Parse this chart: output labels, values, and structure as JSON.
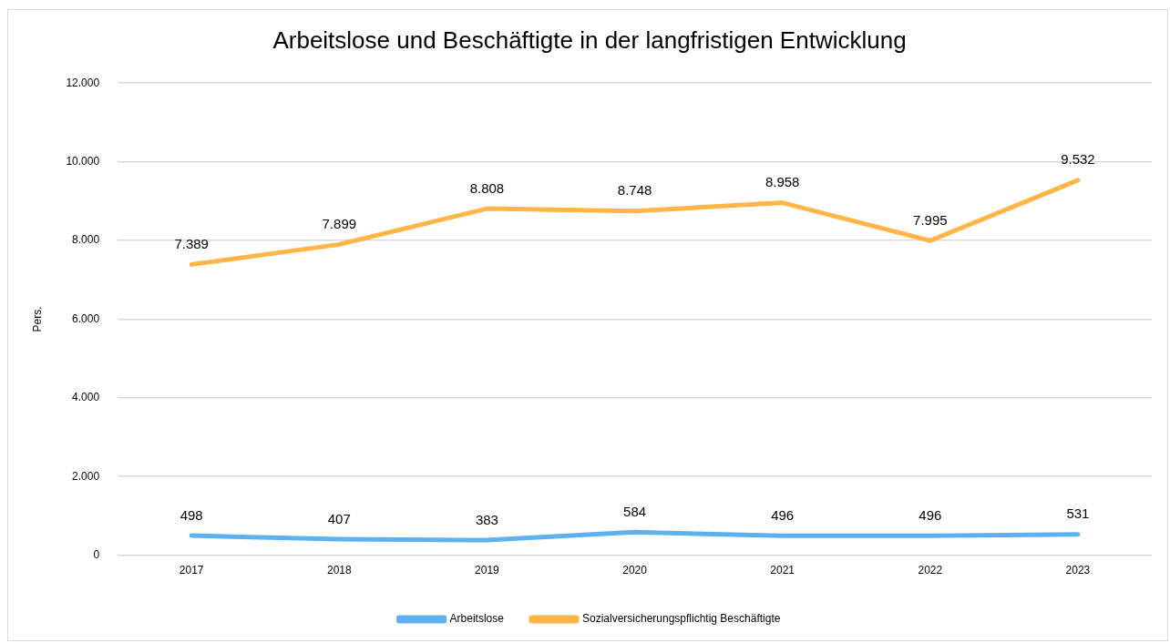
{
  "chart_data": {
    "type": "line",
    "title": "Arbeitslose und Beschäftigte in der langfristigen Entwicklung",
    "ylabel": "Pers.",
    "categories": [
      "2017",
      "2018",
      "2019",
      "2020",
      "2021",
      "2022",
      "2023"
    ],
    "series": [
      {
        "name": "Arbeitslose",
        "color": "#5eb1ef",
        "values": [
          498,
          407,
          383,
          584,
          496,
          496,
          531
        ],
        "value_labels": [
          "498",
          "407",
          "383",
          "584",
          "496",
          "496",
          "531"
        ]
      },
      {
        "name": "Sozialversicherungspflichtig Beschäftigte",
        "color": "#ffb547",
        "values": [
          7389,
          7899,
          8808,
          8748,
          8958,
          7995,
          9532
        ],
        "value_labels": [
          "7.389",
          "7.899",
          "8.808",
          "8.748",
          "8.958",
          "7.995",
          "9.532"
        ]
      }
    ],
    "ylim": [
      0,
      12000
    ],
    "yticks": [
      {
        "value": 0,
        "label": "0"
      },
      {
        "value": 2000,
        "label": "2.000"
      },
      {
        "value": 4000,
        "label": "4.000"
      },
      {
        "value": 6000,
        "label": "6.000"
      },
      {
        "value": 8000,
        "label": "8.000"
      },
      {
        "value": 10000,
        "label": "10.000"
      },
      {
        "value": 12000,
        "label": "12.000"
      }
    ],
    "grid": "y",
    "legend": "bottom",
    "marker": "none",
    "line_style": "solid"
  }
}
